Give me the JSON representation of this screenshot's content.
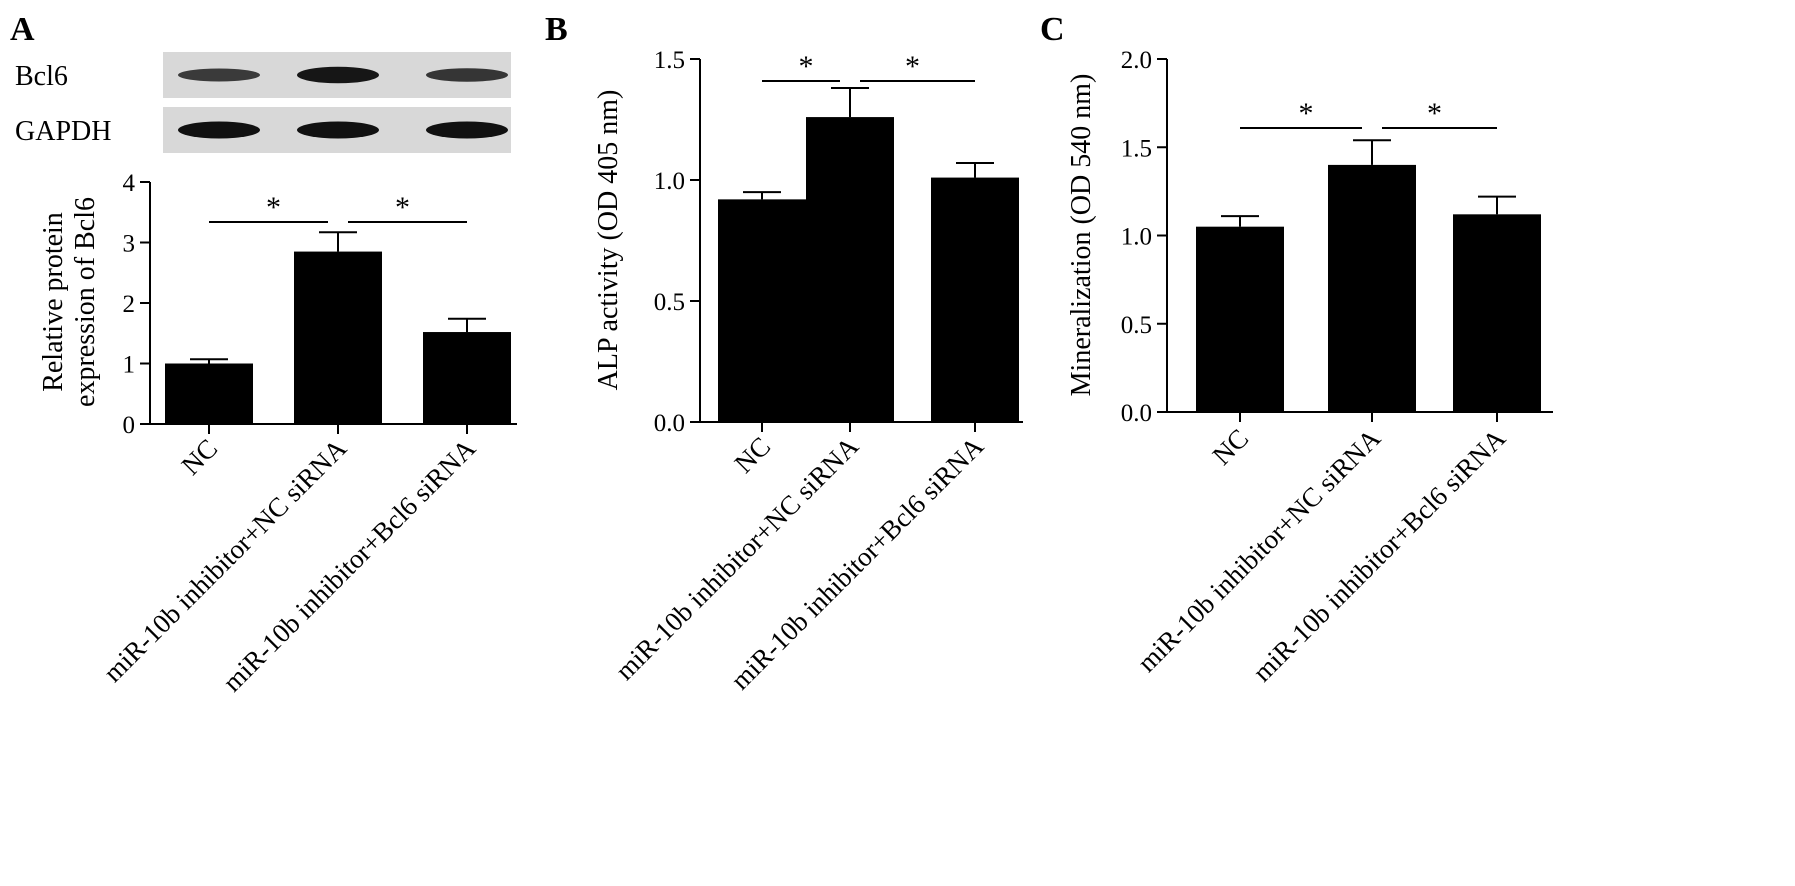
{
  "chart_data": [
    {
      "panel_label": "A",
      "type": "bar",
      "ylabel": "Relative protein\nexpression of Bcl6",
      "ylim": [
        0,
        4
      ],
      "yticks": [
        "0",
        "1",
        "2",
        "3",
        "4"
      ],
      "categories": [
        "NC",
        "miR-10b inhibitor+NC siRNA",
        "miR-10b inhibitor+Bcl6 siRNA"
      ],
      "values": [
        1.0,
        2.85,
        1.52
      ],
      "errors": [
        0.07,
        0.32,
        0.22
      ],
      "significance": [
        {
          "from": 0,
          "to": 1,
          "label": "*"
        },
        {
          "from": 1,
          "to": 2,
          "label": "*"
        }
      ],
      "blot": {
        "rows": [
          {
            "label": "Bcl6",
            "intensities": [
              0.55,
              0.95,
              0.6
            ]
          },
          {
            "label": "GAPDH",
            "intensities": [
              1.0,
              1.0,
              1.0
            ]
          }
        ]
      },
      "grid": false
    },
    {
      "panel_label": "B",
      "type": "bar",
      "ylabel": "ALP activity (OD 405 nm)",
      "ylim": [
        0,
        1.5
      ],
      "yticks": [
        "0.0",
        "0.5",
        "1.0",
        "1.5"
      ],
      "categories": [
        "NC",
        "miR-10b inhibitor+NC siRNA",
        "miR-10b inhibitor+Bcl6 siRNA"
      ],
      "values": [
        0.92,
        1.26,
        1.01
      ],
      "errors": [
        0.03,
        0.12,
        0.06
      ],
      "significance": [
        {
          "from": 0,
          "to": 1,
          "label": "*"
        },
        {
          "from": 1,
          "to": 2,
          "label": "*"
        }
      ],
      "grid": false
    },
    {
      "panel_label": "C",
      "type": "bar",
      "ylabel": "Mineralization  (OD 540 nm)",
      "ylim": [
        0,
        2.0
      ],
      "yticks": [
        "0.0",
        "0.5",
        "1.0",
        "1.5",
        "2.0"
      ],
      "categories": [
        "NC",
        "miR-10b inhibitor+NC siRNA",
        "miR-10b inhibitor+Bcl6 siRNA"
      ],
      "values": [
        1.05,
        1.4,
        1.12
      ],
      "errors": [
        0.06,
        0.14,
        0.1
      ],
      "significance": [
        {
          "from": 0,
          "to": 1,
          "label": "*"
        },
        {
          "from": 1,
          "to": 2,
          "label": "*"
        }
      ],
      "grid": false
    }
  ]
}
